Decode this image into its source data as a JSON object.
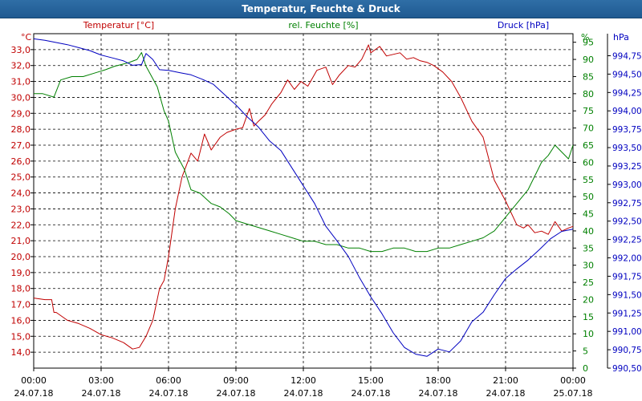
{
  "window": {
    "title": "Temperatur, Feuchte & Druck"
  },
  "colors": {
    "temperature": "#c00000",
    "humidity": "#008000",
    "pressure": "#0000c0",
    "grid": "#000000",
    "titlebar": "#2a679f"
  },
  "chart_data": {
    "type": "line",
    "title": "Temperatur, Feuchte & Druck",
    "x_labels": [
      {
        "time": "00:00",
        "date": "24.07.18"
      },
      {
        "time": "03:00",
        "date": "24.07.18"
      },
      {
        "time": "06:00",
        "date": "24.07.18"
      },
      {
        "time": "09:00",
        "date": "24.07.18"
      },
      {
        "time": "12:00",
        "date": "24.07.18"
      },
      {
        "time": "15:00",
        "date": "24.07.18"
      },
      {
        "time": "18:00",
        "date": "24.07.18"
      },
      {
        "time": "21:00",
        "date": "24.07.18"
      },
      {
        "time": "00:00",
        "date": "25.07.18"
      }
    ],
    "x_range_hours": [
      0,
      24
    ],
    "axes": {
      "temperature": {
        "label": "Temperatur [°C]",
        "unit": "°C",
        "range": [
          13.0,
          34.0
        ],
        "ticks": [
          "33,0",
          "32,0",
          "31,0",
          "30,0",
          "29,0",
          "28,0",
          "27,0",
          "26,0",
          "25,0",
          "24,0",
          "23,0",
          "22,0",
          "21,0",
          "20,0",
          "19,0",
          "18,0",
          "17,0",
          "16,0",
          "15,0",
          "14,0"
        ]
      },
      "humidity": {
        "label": "rel. Feuchte [%]",
        "unit": "%",
        "range": [
          0,
          97.5
        ],
        "ticks": [
          "95",
          "90",
          "85",
          "80",
          "75",
          "70",
          "65",
          "60",
          "55",
          "50",
          "45",
          "40",
          "35",
          "30",
          "25",
          "20",
          "15",
          "10",
          "5",
          "0"
        ]
      },
      "pressure": {
        "label": "Druck [hPa]",
        "unit": "hPa",
        "range": [
          990.5,
          995.05
        ],
        "ticks": [
          "994,75",
          "994,50",
          "994,25",
          "994,00",
          "993,75",
          "993,50",
          "993,25",
          "993,00",
          "992,75",
          "992,50",
          "992,25",
          "992,00",
          "991,75",
          "991,50",
          "991,25",
          "991,00",
          "990,75",
          "990,50"
        ]
      }
    },
    "series": [
      {
        "name": "Temperatur [°C]",
        "axis": "temperature",
        "x": [
          0,
          0.5,
          0.8,
          0.9,
          1.0,
          1.5,
          2.0,
          2.5,
          3.0,
          3.5,
          4.0,
          4.4,
          4.7,
          5.0,
          5.3,
          5.6,
          5.8,
          6.0,
          6.3,
          6.6,
          7.0,
          7.3,
          7.6,
          7.9,
          8.3,
          8.6,
          9.0,
          9.3,
          9.6,
          9.8,
          10.0,
          10.3,
          10.6,
          11.0,
          11.3,
          11.6,
          11.9,
          12.2,
          12.6,
          13.0,
          13.3,
          13.6,
          14.0,
          14.3,
          14.6,
          14.9,
          15.0,
          15.2,
          15.4,
          15.7,
          16.0,
          16.3,
          16.6,
          16.9,
          17.2,
          17.5,
          17.8,
          18.2,
          18.6,
          19.0,
          19.5,
          20.0,
          20.5,
          21.0,
          21.5,
          21.8,
          22.0,
          22.3,
          22.6,
          22.9,
          23.2,
          23.5,
          23.8,
          24.0
        ],
        "values": [
          17.4,
          17.3,
          17.3,
          16.5,
          16.5,
          16.0,
          15.8,
          15.5,
          15.1,
          14.9,
          14.6,
          14.2,
          14.3,
          15.0,
          16.0,
          18.0,
          18.5,
          20.0,
          23.0,
          25.0,
          26.5,
          26.0,
          27.7,
          26.7,
          27.5,
          27.8,
          28.0,
          28.1,
          29.3,
          28.2,
          28.5,
          28.9,
          29.6,
          30.3,
          31.1,
          30.5,
          31.0,
          30.7,
          31.7,
          31.9,
          30.8,
          31.4,
          32.0,
          31.9,
          32.4,
          33.3,
          32.8,
          33.0,
          33.2,
          32.6,
          32.7,
          32.8,
          32.4,
          32.5,
          32.3,
          32.2,
          32.0,
          31.6,
          31.0,
          30.0,
          28.5,
          27.5,
          24.8,
          23.5,
          22.0,
          21.8,
          22.0,
          21.5,
          21.6,
          21.4,
          22.2,
          21.6,
          21.8,
          21.9
        ]
      },
      {
        "name": "rel. Feuchte [%]",
        "axis": "humidity",
        "x": [
          0,
          0.4,
          0.9,
          1.2,
          1.7,
          2.2,
          2.7,
          3.2,
          3.6,
          4.2,
          4.6,
          4.8,
          5.0,
          5.5,
          5.8,
          6.0,
          6.3,
          6.7,
          7.0,
          7.4,
          7.9,
          8.3,
          8.7,
          9.0,
          9.5,
          10.0,
          10.5,
          11.0,
          11.5,
          12.0,
          12.5,
          13.0,
          13.5,
          14.0,
          14.5,
          15.0,
          15.5,
          16.0,
          16.5,
          17.0,
          17.5,
          18.0,
          18.5,
          19.0,
          19.5,
          20.0,
          20.5,
          21.0,
          21.5,
          22.0,
          22.3,
          22.6,
          22.9,
          23.2,
          23.5,
          23.8,
          24.0
        ],
        "values": [
          80,
          80,
          79,
          84,
          85,
          85,
          86,
          87,
          88,
          89,
          90,
          92,
          88,
          82,
          75,
          72,
          63,
          58,
          52,
          51,
          48,
          47,
          45,
          43,
          42,
          41,
          40,
          39,
          38,
          37,
          37,
          36,
          36,
          35,
          35,
          34,
          34,
          35,
          35,
          34,
          34,
          35,
          35,
          36,
          37,
          38,
          40,
          44,
          48,
          52,
          56,
          60,
          62,
          65,
          63,
          61,
          65
        ]
      },
      {
        "name": "Druck [hPa]",
        "axis": "pressure",
        "x": [
          0,
          0.5,
          1.0,
          1.5,
          2.0,
          2.5,
          3.0,
          3.5,
          4.0,
          4.4,
          4.8,
          5.0,
          5.3,
          5.6,
          6.0,
          6.5,
          7.0,
          7.5,
          8.0,
          8.5,
          9.0,
          9.5,
          10.0,
          10.5,
          11.0,
          11.5,
          12.0,
          12.5,
          13.0,
          13.5,
          14.0,
          14.5,
          15.0,
          15.5,
          16.0,
          16.5,
          17.0,
          17.5,
          18.0,
          18.5,
          19.0,
          19.5,
          20.0,
          20.5,
          21.0,
          21.5,
          22.0,
          22.5,
          23.0,
          23.5,
          24.0
        ],
        "values": [
          994.98,
          994.96,
          994.93,
          994.9,
          994.86,
          994.82,
          994.76,
          994.72,
          994.68,
          994.62,
          994.63,
          994.78,
          994.7,
          994.56,
          994.55,
          994.52,
          994.49,
          994.43,
          994.36,
          994.22,
          994.08,
          993.92,
          993.78,
          993.59,
          993.46,
          993.22,
          992.98,
          992.74,
          992.43,
          992.23,
          992.02,
          991.73,
          991.47,
          991.24,
          990.98,
          990.78,
          990.69,
          990.66,
          990.76,
          990.72,
          990.87,
          991.13,
          991.26,
          991.5,
          991.72,
          991.85,
          991.97,
          992.11,
          992.26,
          992.36,
          992.39
        ]
      }
    ],
    "grid": true
  }
}
